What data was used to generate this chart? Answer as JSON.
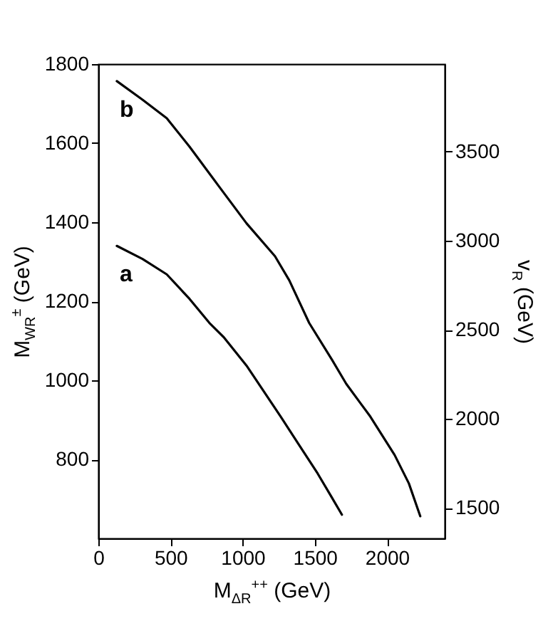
{
  "chart_data": {
    "type": "line",
    "xlabel": "M$_{ΔR}$$^{++}$ (GeV)",
    "ylabel": "M$_{WR}$$^{±}$ (GeV)",
    "y2label": "v$_{R}$ (GeV)",
    "xlim": [
      0,
      2400
    ],
    "xticks": [
      0,
      500,
      1000,
      1500,
      2000
    ],
    "ylim": [
      600,
      1800
    ],
    "yticks": [
      800,
      1000,
      1200,
      1400,
      1600,
      1800
    ],
    "y2lim": [
      1330,
      3990
    ],
    "y2ticks": [
      1500,
      2000,
      2500,
      3000,
      3500
    ],
    "grid": false,
    "legend": false,
    "marker": "none",
    "line_style": "solid",
    "series": [
      {
        "name": "a",
        "color": "#000000",
        "x": [
          128,
          306,
          474,
          632,
          770,
          869,
          1027,
          1264,
          1392,
          1520,
          1619,
          1688
        ],
        "values": [
          1340,
          1307,
          1268,
          1206,
          1145,
          1109,
          1037,
          908,
          836,
          764,
          703,
          660
        ]
      },
      {
        "name": "b",
        "color": "#000000",
        "x": [
          128,
          306,
          474,
          632,
          829,
          1027,
          1224,
          1323,
          1461,
          1619,
          1718,
          1885,
          2053,
          2152,
          2231
        ],
        "values": [
          1757,
          1710,
          1663,
          1591,
          1494,
          1397,
          1314,
          1253,
          1145,
          1052,
          991,
          908,
          811,
          739,
          656
        ]
      }
    ]
  }
}
